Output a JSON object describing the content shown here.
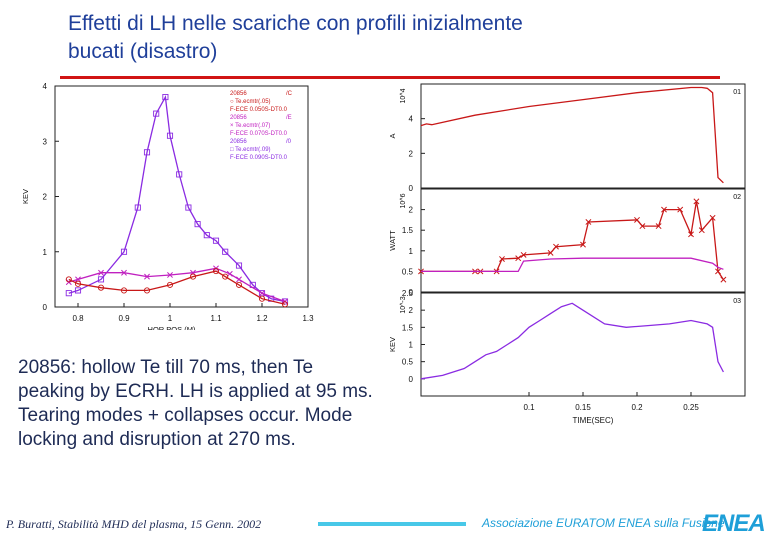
{
  "title": {
    "line1": "Effetti di LH nelle scariche con profili inizialmente",
    "line2": "bucati  (disastro)"
  },
  "description": "20856: hollow Te till 70 ms, then Te peaking by ECRH. LH is applied at 95 ms. Tearing modes + collapses occur. Mode locking and disruption at 270 ms.",
  "footer": {
    "credit": "P. Buratti, Stabilità MHD del plasma, 15 Genn. 2002",
    "association": "Associazione EURATOM ENEA sulla Fusione",
    "logo": "ENEA"
  },
  "colors": {
    "title": "#1f3f9a",
    "rule": "#d11414",
    "purple": "#8a2be2",
    "magenta": "#c020c0",
    "red": "#c81818",
    "cyan": "#48c8e8"
  },
  "chart_data": [
    {
      "type": "line",
      "xlabel": "HOR.POS.(M)",
      "ylabel": "KEV",
      "xlim": [
        0.75,
        1.3
      ],
      "ylim": [
        0,
        4
      ],
      "xticks": [
        0.8,
        0.9,
        1,
        1.1,
        1.2,
        1.3
      ],
      "yticks": [
        0,
        1,
        2,
        3,
        4
      ],
      "xtick_labels": [
        "0.8",
        "0.9",
        "1",
        "1.1",
        "1.2",
        "1.3"
      ],
      "ytick_labels": [
        "0",
        "1",
        "2",
        "3",
        "4"
      ],
      "legend": {
        "position": "top-right",
        "entries": [
          {
            "shot": "20856",
            "tag": "/C",
            "marker": "○ Te.ecmtr(.05)",
            "line": "F-ECE 0.050S-DT0.0",
            "color": "#c81818"
          },
          {
            "shot": "20856",
            "tag": "/E",
            "marker": "× Te.ecmtr(.07)",
            "line": "F-ECE 0.070S-DT0.0",
            "color": "#c020c0"
          },
          {
            "shot": "20856",
            "tag": "/0",
            "marker": "□ Te.ecmtr(.09)",
            "line": "F-ECE 0.090S-DT0.0",
            "color": "#8a2be2"
          }
        ]
      },
      "series": [
        {
          "color": "#8a2be2",
          "marker": "square",
          "x": [
            0.78,
            0.8,
            0.85,
            0.9,
            0.93,
            0.95,
            0.97,
            0.99,
            1.0,
            1.02,
            1.04,
            1.06,
            1.08,
            1.1,
            1.12,
            1.15,
            1.18,
            1.2,
            1.22,
            1.25
          ],
          "y": [
            0.25,
            0.3,
            0.5,
            1.0,
            1.8,
            2.8,
            3.5,
            3.8,
            3.1,
            2.4,
            1.8,
            1.5,
            1.3,
            1.2,
            1.0,
            0.75,
            0.4,
            0.25,
            0.15,
            0.1
          ]
        },
        {
          "color": "#c020c0",
          "marker": "cross",
          "x": [
            0.78,
            0.8,
            0.85,
            0.9,
            0.95,
            1.0,
            1.05,
            1.1,
            1.13,
            1.15,
            1.2,
            1.25
          ],
          "y": [
            0.45,
            0.5,
            0.62,
            0.62,
            0.55,
            0.58,
            0.62,
            0.7,
            0.6,
            0.5,
            0.25,
            0.1
          ]
        },
        {
          "color": "#c81818",
          "marker": "circle",
          "x": [
            0.78,
            0.8,
            0.85,
            0.9,
            0.95,
            1.0,
            1.05,
            1.1,
            1.12,
            1.15,
            1.2,
            1.25
          ],
          "y": [
            0.5,
            0.42,
            0.35,
            0.3,
            0.3,
            0.4,
            0.55,
            0.65,
            0.55,
            0.4,
            0.15,
            0.05
          ]
        }
      ]
    },
    {
      "type": "line",
      "panel": "01",
      "ylabel": "A",
      "scale_label": "10^4",
      "xlim": [
        0,
        0.3
      ],
      "ylim": [
        0,
        6
      ],
      "yticks": [
        0,
        2,
        4
      ],
      "ytick_labels": [
        "0",
        "2",
        "4"
      ],
      "series": [
        {
          "color": "#c81818",
          "x": [
            0,
            0.005,
            0.01,
            0.05,
            0.1,
            0.15,
            0.2,
            0.25,
            0.26,
            0.265,
            0.27,
            0.272,
            0.275,
            0.28
          ],
          "y": [
            3.6,
            3.7,
            3.65,
            4.2,
            4.7,
            5.1,
            5.5,
            5.8,
            5.8,
            5.75,
            5.5,
            3.5,
            0.6,
            0.3
          ]
        }
      ]
    },
    {
      "type": "line",
      "panel": "02",
      "ylabel": "WATT",
      "scale_label": "10^6",
      "xlim": [
        0,
        0.3
      ],
      "ylim": [
        0,
        2.5
      ],
      "yticks": [
        0,
        0.5,
        1,
        1.5,
        2
      ],
      "ytick_labels": [
        "0",
        "0.5",
        "1",
        "1.5",
        "2"
      ],
      "series": [
        {
          "color": "#c81818",
          "marker": "cross",
          "x": [
            0,
            0.05,
            0.055,
            0.07,
            0.075,
            0.09,
            0.095,
            0.12,
            0.125,
            0.15,
            0.155,
            0.2,
            0.205,
            0.22,
            0.225,
            0.24,
            0.25,
            0.255,
            0.26,
            0.27,
            0.275,
            0.28
          ],
          "y": [
            0.5,
            0.5,
            0.5,
            0.5,
            0.8,
            0.82,
            0.9,
            0.95,
            1.1,
            1.15,
            1.7,
            1.75,
            1.6,
            1.6,
            2.0,
            2.0,
            1.4,
            2.2,
            1.5,
            1.8,
            0.5,
            0.3
          ]
        },
        {
          "color": "#c020c0",
          "x": [
            0,
            0.09,
            0.095,
            0.12,
            0.15,
            0.2,
            0.25,
            0.27,
            0.275,
            0.28
          ],
          "y": [
            0.5,
            0.5,
            0.75,
            0.8,
            0.82,
            0.82,
            0.82,
            0.7,
            0.6,
            0.55
          ]
        }
      ]
    },
    {
      "type": "line",
      "panel": "03",
      "ylabel": "KEV",
      "scale_label": "10^-3",
      "xlabel": "TIME(SEC)",
      "xlim": [
        0,
        0.3
      ],
      "ylim": [
        -0.5,
        2.5
      ],
      "xticks": [
        0.1,
        0.15,
        0.2,
        0.25
      ],
      "yticks": [
        0,
        0.5,
        1,
        1.5,
        2,
        2.5
      ],
      "xtick_labels": [
        "0.1",
        "0.15",
        "0.2",
        "0.25"
      ],
      "ytick_labels": [
        "0",
        "0.5",
        "1",
        "1.5",
        "2",
        "2.5"
      ],
      "series": [
        {
          "color": "#8a2be2",
          "x": [
            0,
            0.02,
            0.04,
            0.05,
            0.06,
            0.07,
            0.08,
            0.09,
            0.1,
            0.11,
            0.12,
            0.13,
            0.14,
            0.15,
            0.17,
            0.19,
            0.21,
            0.23,
            0.25,
            0.265,
            0.27,
            0.275,
            0.28
          ],
          "y": [
            0,
            0.1,
            0.3,
            0.5,
            0.7,
            0.8,
            1.0,
            1.2,
            1.5,
            1.7,
            1.9,
            2.1,
            2.2,
            2.0,
            1.6,
            1.5,
            1.55,
            1.6,
            1.7,
            1.6,
            1.5,
            0.5,
            0.2
          ]
        }
      ]
    }
  ]
}
